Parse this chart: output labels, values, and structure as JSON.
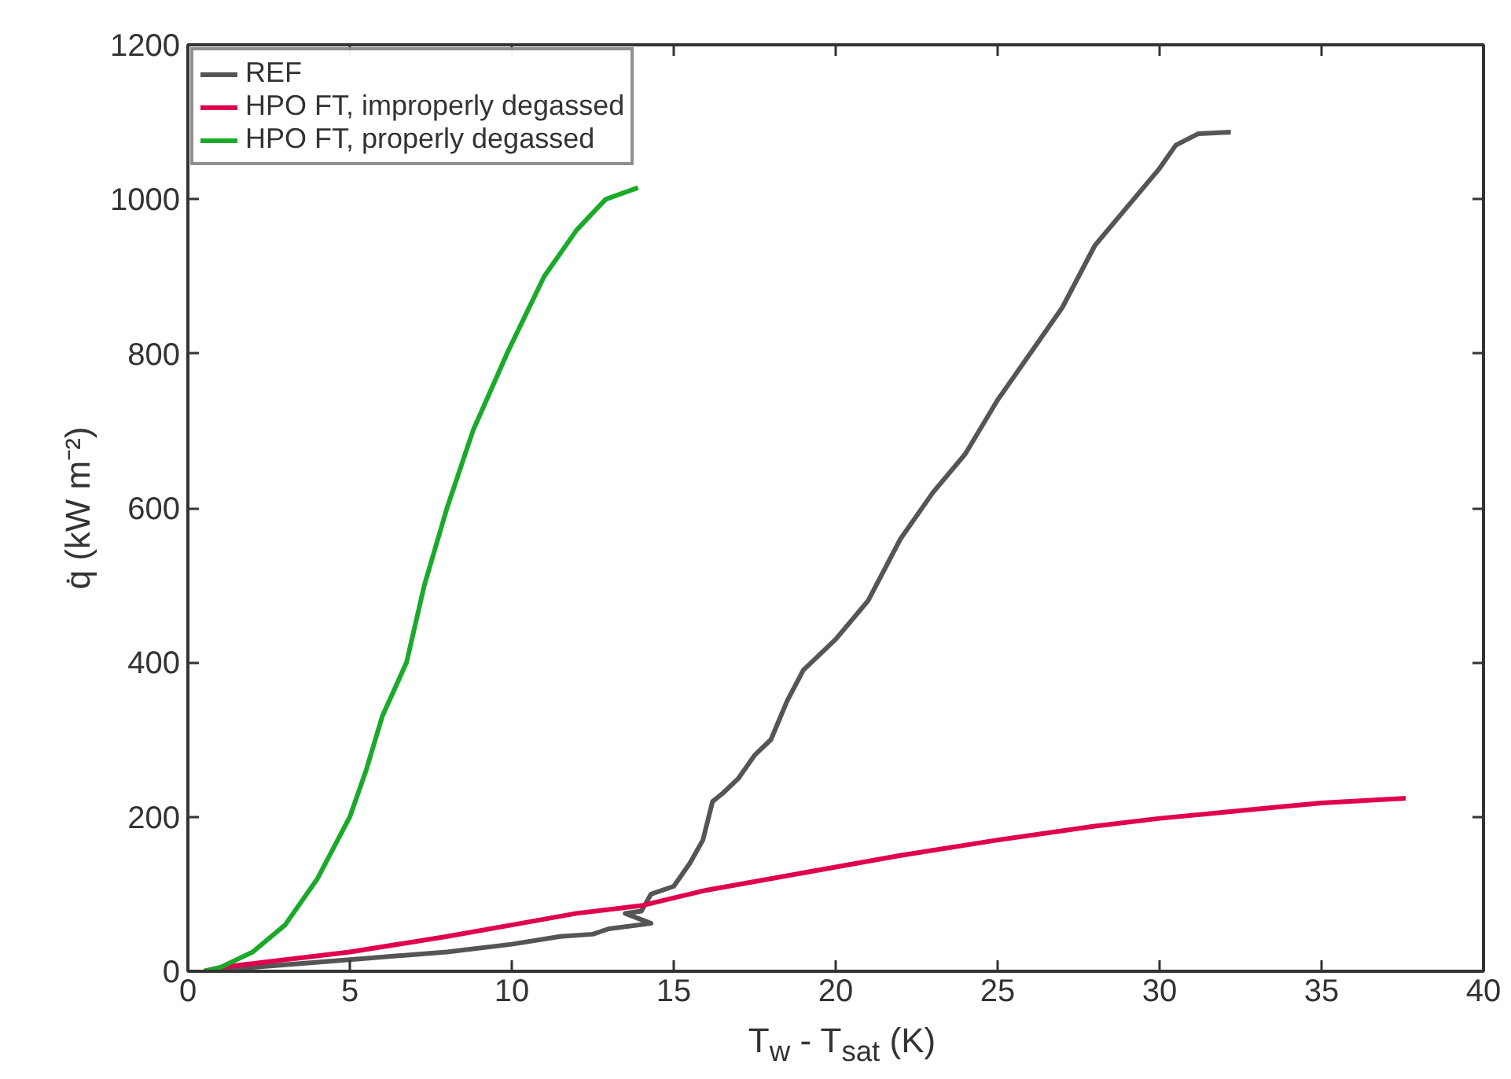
{
  "chart_data": {
    "type": "line",
    "xlabel": "T$_{w}$ - T$_{sat}$ (K)",
    "ylabel": "q̇ (kW m⁻²)",
    "xlim": [
      0,
      40
    ],
    "ylim": [
      0,
      1200
    ],
    "xticks": [
      0,
      5,
      10,
      15,
      20,
      25,
      30,
      35,
      40
    ],
    "yticks": [
      0,
      200,
      400,
      600,
      800,
      1000,
      1200
    ],
    "grid": false,
    "legend": "top left",
    "line_style": "solid",
    "marker": "none",
    "series": [
      {
        "name": "REF",
        "color": "#555555",
        "x": [
          0.5,
          2,
          5,
          8,
          10,
          11.5,
          12.5,
          13,
          14.3,
          13.5,
          14,
          14.3,
          15,
          15.5,
          15.9,
          16.2,
          16.5,
          17,
          17.5,
          18,
          18.5,
          19,
          20,
          21,
          22,
          23,
          24,
          25,
          26,
          27,
          28,
          29,
          30,
          30.5,
          31.2,
          32.2
        ],
        "values": [
          0,
          5,
          15,
          25,
          35,
          45,
          48,
          55,
          62,
          75,
          78,
          100,
          110,
          140,
          170,
          220,
          230,
          250,
          280,
          300,
          350,
          390,
          430,
          480,
          560,
          620,
          670,
          740,
          800,
          860,
          940,
          990,
          1040,
          1070,
          1085,
          1087
        ]
      },
      {
        "name": "HPO FT, improperly degassed",
        "color": "#e0004d",
        "x": [
          0.5,
          1,
          2,
          5,
          8,
          10,
          12,
          14,
          16,
          18,
          20,
          22,
          25,
          28,
          30,
          33,
          35,
          37.6
        ],
        "values": [
          0,
          5,
          10,
          25,
          45,
          60,
          75,
          85,
          105,
          120,
          135,
          150,
          170,
          188,
          198,
          210,
          218,
          224
        ]
      },
      {
        "name": "HPO FT, properly degassed",
        "color": "#1aaa2a",
        "x": [
          0.5,
          1,
          2,
          3,
          4,
          5,
          5.5,
          6,
          6.75,
          7.3,
          8,
          8.8,
          9.85,
          11,
          12,
          12.9,
          13.9
        ],
        "values": [
          0,
          5,
          25,
          60,
          120,
          200,
          260,
          330,
          400,
          500,
          600,
          700,
          800,
          900,
          960,
          1000,
          1015
        ]
      }
    ]
  }
}
